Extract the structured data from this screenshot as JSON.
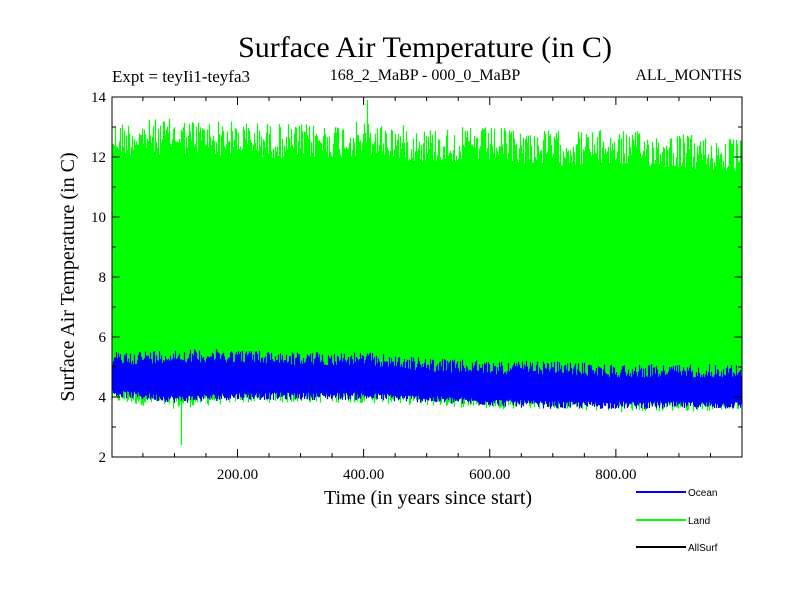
{
  "chart_data": {
    "type": "line",
    "title": "Surface Air Temperature (in C)",
    "subtitle_left": "Expt = teyIi1-teyfa3",
    "subtitle_center": "168_2_MaBP - 000_0_MaBP",
    "subtitle_right": "ALL_MONTHS",
    "xlabel": "Time (in years since start)",
    "ylabel": "Surface Air Temperature (in C)",
    "xlim": [
      1,
      1000
    ],
    "ylim": [
      2,
      14
    ],
    "x_ticks": [
      200,
      400,
      600,
      800
    ],
    "x_tick_labels": [
      "200.00",
      "400.00",
      "600.00",
      "800.00"
    ],
    "y_ticks": [
      2,
      4,
      6,
      8,
      10,
      12,
      14
    ],
    "y_tick_labels": [
      "2",
      "4",
      "6",
      "8",
      "10",
      "12",
      "14"
    ],
    "series": [
      {
        "name": "Land",
        "color": "#00ff00",
        "description": "monthly values, range approx",
        "envelope_x": [
          1,
          100,
          200,
          300,
          400,
          500,
          600,
          700,
          800,
          900,
          1000
        ],
        "envelope_low": [
          3.8,
          3.6,
          3.8,
          3.8,
          3.8,
          3.7,
          3.6,
          3.6,
          3.5,
          3.5,
          3.6
        ],
        "envelope_high": [
          13.2,
          13.3,
          13.2,
          13.1,
          13.2,
          13.0,
          13.0,
          12.9,
          12.9,
          12.8,
          12.6
        ],
        "min_spike": {
          "x": 110,
          "y": 2.4
        },
        "max_spike": {
          "x": 405,
          "y": 13.9
        }
      },
      {
        "name": "Ocean",
        "color": "#0000ff",
        "envelope_x": [
          1,
          100,
          200,
          300,
          400,
          500,
          600,
          700,
          800,
          900,
          1000
        ],
        "envelope_low": [
          4.0,
          3.8,
          3.9,
          3.9,
          3.9,
          3.8,
          3.7,
          3.6,
          3.6,
          3.6,
          3.6
        ],
        "envelope_high": [
          5.5,
          5.6,
          5.6,
          5.5,
          5.5,
          5.3,
          5.2,
          5.2,
          5.1,
          5.1,
          5.1
        ]
      },
      {
        "name": "AllSurf",
        "color": "#000000"
      }
    ],
    "legend": {
      "position": "bottom-right",
      "entries": [
        {
          "label": "Ocean",
          "color": "#0000ff"
        },
        {
          "label": "Land",
          "color": "#00ff00"
        },
        {
          "label": "AllSurf",
          "color": "#000000"
        }
      ]
    }
  }
}
